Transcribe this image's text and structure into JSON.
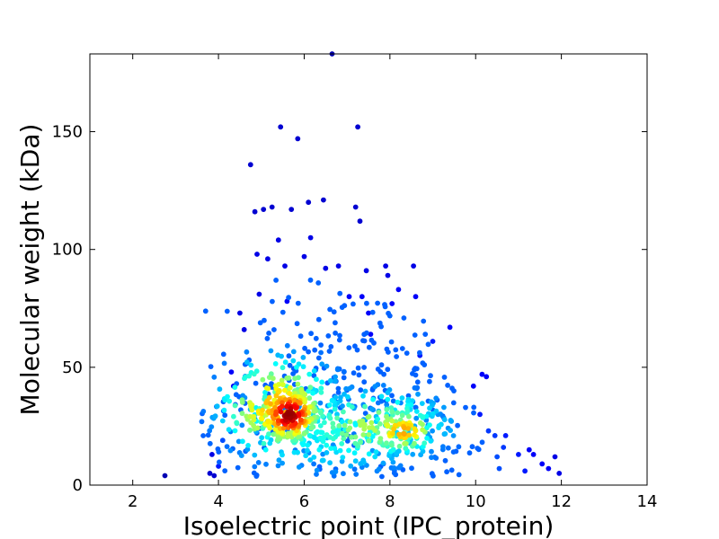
{
  "chart_data": {
    "type": "scatter",
    "title": "",
    "xlabel": "Isoelectric point (IPC_protein)",
    "ylabel": "Molecular weight (kDa)",
    "xlim": [
      1,
      14
    ],
    "ylim": [
      0,
      183
    ],
    "xticks": [
      2,
      4,
      6,
      8,
      10,
      12,
      14
    ],
    "yticks": [
      0,
      50,
      100,
      150
    ],
    "grid": false,
    "legend": "none",
    "color_encoding": "point density (jet colormap: blue = low, dark red = high)",
    "colormap": [
      "#00007f",
      "#0000ff",
      "#007fff",
      "#00ffff",
      "#7fff7f",
      "#ffff00",
      "#ff7f00",
      "#ff0000",
      "#7f0000"
    ],
    "points": [
      {
        "x": 2.75,
        "y": 4,
        "c": 0.05
      },
      {
        "x": 3.8,
        "y": 5,
        "c": 0.08
      },
      {
        "x": 3.9,
        "y": 4,
        "c": 0.08
      },
      {
        "x": 3.85,
        "y": 13,
        "c": 0.1
      },
      {
        "x": 4.0,
        "y": 8,
        "c": 0.15
      },
      {
        "x": 4.1,
        "y": 19,
        "c": 0.2
      },
      {
        "x": 4.3,
        "y": 48,
        "c": 0.12
      },
      {
        "x": 4.35,
        "y": 42,
        "c": 0.12
      },
      {
        "x": 4.5,
        "y": 73,
        "c": 0.1
      },
      {
        "x": 4.6,
        "y": 66,
        "c": 0.1
      },
      {
        "x": 4.75,
        "y": 136,
        "c": 0.08
      },
      {
        "x": 4.85,
        "y": 116,
        "c": 0.08
      },
      {
        "x": 4.9,
        "y": 98,
        "c": 0.1
      },
      {
        "x": 4.95,
        "y": 81,
        "c": 0.1
      },
      {
        "x": 5.05,
        "y": 117,
        "c": 0.08
      },
      {
        "x": 5.15,
        "y": 96,
        "c": 0.1
      },
      {
        "x": 5.25,
        "y": 118,
        "c": 0.08
      },
      {
        "x": 5.4,
        "y": 104,
        "c": 0.1
      },
      {
        "x": 5.45,
        "y": 152,
        "c": 0.08
      },
      {
        "x": 5.55,
        "y": 93,
        "c": 0.1
      },
      {
        "x": 5.6,
        "y": 78,
        "c": 0.12
      },
      {
        "x": 5.7,
        "y": 117,
        "c": 0.08
      },
      {
        "x": 5.85,
        "y": 147,
        "c": 0.08
      },
      {
        "x": 6.0,
        "y": 97,
        "c": 0.1
      },
      {
        "x": 6.1,
        "y": 120,
        "c": 0.08
      },
      {
        "x": 6.15,
        "y": 105,
        "c": 0.1
      },
      {
        "x": 6.45,
        "y": 121,
        "c": 0.08
      },
      {
        "x": 6.5,
        "y": 92,
        "c": 0.1
      },
      {
        "x": 6.65,
        "y": 183,
        "c": 0.05
      },
      {
        "x": 6.8,
        "y": 93,
        "c": 0.1
      },
      {
        "x": 7.05,
        "y": 80,
        "c": 0.12
      },
      {
        "x": 7.2,
        "y": 118,
        "c": 0.08
      },
      {
        "x": 7.25,
        "y": 152,
        "c": 0.08
      },
      {
        "x": 7.3,
        "y": 112,
        "c": 0.08
      },
      {
        "x": 7.35,
        "y": 80,
        "c": 0.12
      },
      {
        "x": 7.45,
        "y": 91,
        "c": 0.1
      },
      {
        "x": 7.5,
        "y": 73,
        "c": 0.12
      },
      {
        "x": 7.55,
        "y": 64,
        "c": 0.12
      },
      {
        "x": 7.9,
        "y": 93,
        "c": 0.1
      },
      {
        "x": 7.95,
        "y": 89,
        "c": 0.1
      },
      {
        "x": 8.05,
        "y": 77,
        "c": 0.12
      },
      {
        "x": 8.2,
        "y": 83,
        "c": 0.12
      },
      {
        "x": 8.55,
        "y": 93,
        "c": 0.1
      },
      {
        "x": 8.6,
        "y": 80,
        "c": 0.12
      },
      {
        "x": 8.7,
        "y": 55,
        "c": 0.15
      },
      {
        "x": 9.0,
        "y": 61,
        "c": 0.15
      },
      {
        "x": 9.4,
        "y": 67,
        "c": 0.12
      },
      {
        "x": 9.95,
        "y": 42,
        "c": 0.12
      },
      {
        "x": 10.1,
        "y": 30,
        "c": 0.15
      },
      {
        "x": 10.15,
        "y": 47,
        "c": 0.12
      },
      {
        "x": 10.25,
        "y": 46,
        "c": 0.12
      },
      {
        "x": 10.3,
        "y": 23,
        "c": 0.18
      },
      {
        "x": 10.45,
        "y": 21,
        "c": 0.18
      },
      {
        "x": 10.5,
        "y": 12,
        "c": 0.2
      },
      {
        "x": 10.55,
        "y": 7,
        "c": 0.2
      },
      {
        "x": 10.65,
        "y": 16,
        "c": 0.18
      },
      {
        "x": 10.7,
        "y": 21,
        "c": 0.15
      },
      {
        "x": 11.0,
        "y": 13,
        "c": 0.15
      },
      {
        "x": 11.15,
        "y": 6,
        "c": 0.15
      },
      {
        "x": 11.25,
        "y": 15,
        "c": 0.12
      },
      {
        "x": 11.35,
        "y": 13,
        "c": 0.12
      },
      {
        "x": 11.55,
        "y": 9,
        "c": 0.12
      },
      {
        "x": 11.7,
        "y": 7,
        "c": 0.12
      },
      {
        "x": 11.85,
        "y": 12,
        "c": 0.1
      },
      {
        "x": 11.95,
        "y": 5,
        "c": 0.1
      }
    ],
    "density_clusters": [
      {
        "cx": 5.65,
        "cy": 30,
        "sx": 0.42,
        "sy": 7,
        "n": 190,
        "peak": 0.98
      },
      {
        "cx": 5.4,
        "cy": 33,
        "sx": 0.85,
        "sy": 13,
        "n": 230,
        "peak": 0.72
      },
      {
        "cx": 8.3,
        "cy": 23,
        "sx": 0.55,
        "sy": 6,
        "n": 110,
        "peak": 0.72
      },
      {
        "cx": 7.6,
        "cy": 25,
        "sx": 1.3,
        "sy": 11,
        "n": 230,
        "peak": 0.55
      },
      {
        "cx": 6.8,
        "cy": 20,
        "sx": 2.1,
        "sy": 13,
        "n": 220,
        "peak": 0.4
      },
      {
        "cx": 7.0,
        "cy": 58,
        "sx": 1.4,
        "sy": 14,
        "n": 110,
        "peak": 0.16
      }
    ]
  }
}
